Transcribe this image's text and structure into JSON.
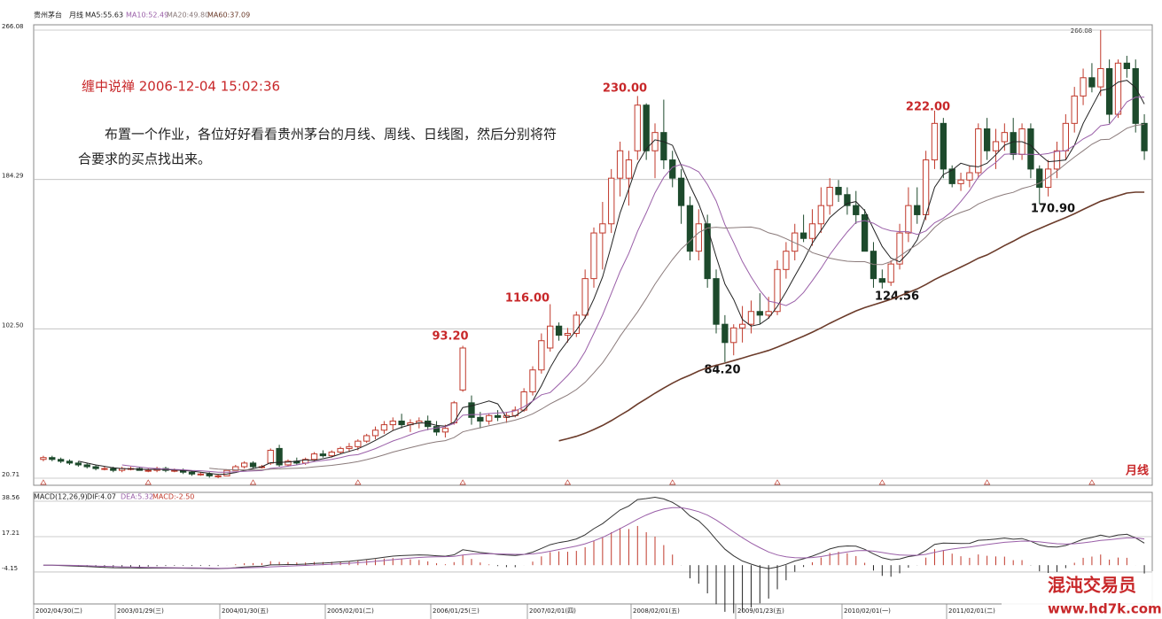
{
  "chart_data": {
    "type": "candlestick",
    "title": "贵州茅台",
    "period": "月线",
    "ma_legend": [
      "MA5:55.63",
      "MA10:52.49",
      "MA20:49.80",
      "MA60:37.09"
    ],
    "ma_colors": [
      "#222222",
      "#9a5fa8",
      "#8a7a7a",
      "#6b3b2a"
    ],
    "ma_periods": [
      5,
      10,
      20,
      60
    ],
    "up_color": "#c0392b",
    "down_color": "#1d4a2c",
    "ylim": [
      20.71,
      266.08
    ],
    "yticks": [
      20.71,
      {
        "value": 102.5,
        "label": "102.50"
      },
      184.29,
      266.08
    ],
    "annotations": [
      "93.20",
      "116.00",
      "230.00",
      "84.20",
      "222.00",
      "124.56",
      "170.90",
      "266.08"
    ],
    "note_title": "缠中说禅 2006-12-04 15:02:36",
    "note_body_1": "布置一个作业，各位好好看看贵州茅台的月线、周线、日线图，然后分别将符",
    "note_body_2": "合要求的买点找出来。",
    "corner_label": "月线",
    "x_labels": [
      "2002/04/30(二)",
      "2003/01/29(三)",
      "2004/01/30(五)",
      "2005/02/01(二)",
      "2006/01/25(三)",
      "2007/02/01(四)",
      "2008/02/01(五)",
      "2009/01/23(五)",
      "2010/02/01(一)",
      "2011/02/01(二)"
    ],
    "macd": {
      "legend": "MACD(12,26,9)",
      "dif_label": "DIF:4.07",
      "dea_label": "DEA:5.32",
      "macd_label": "MACD:-2.50",
      "ylim": [
        -23.4,
        43.9
      ],
      "yticks": [
        38.56,
        17.21,
        -4.15
      ]
    },
    "watermark_1": "混沌交易员",
    "watermark_2": "www.hd7k.com",
    "candles": [
      [
        31,
        33,
        30,
        32
      ],
      [
        32,
        33,
        30,
        31
      ],
      [
        31,
        32,
        29,
        30
      ],
      [
        30,
        31,
        28,
        29
      ],
      [
        29,
        30,
        27,
        28
      ],
      [
        28,
        29,
        26,
        27
      ],
      [
        27,
        28,
        25,
        26
      ],
      [
        26,
        27,
        25,
        26
      ],
      [
        26,
        27,
        24,
        25
      ],
      [
        25,
        27,
        24,
        26
      ],
      [
        26,
        27,
        25,
        26
      ],
      [
        26,
        27,
        25,
        25
      ],
      [
        25,
        26,
        24,
        25
      ],
      [
        25,
        27,
        24,
        26
      ],
      [
        26,
        27,
        24,
        25
      ],
      [
        25,
        26,
        24,
        25
      ],
      [
        25,
        26,
        23,
        24
      ],
      [
        24,
        25,
        22,
        23
      ],
      [
        23,
        24,
        22,
        23
      ],
      [
        23,
        24,
        21,
        22
      ],
      [
        22,
        23,
        20.71,
        22
      ],
      [
        22,
        25,
        22,
        25
      ],
      [
        25,
        28,
        25,
        27
      ],
      [
        27,
        30,
        26,
        29
      ],
      [
        29,
        30,
        26,
        27
      ],
      [
        27,
        28,
        26,
        27
      ],
      [
        29,
        37,
        28,
        36
      ],
      [
        37,
        39,
        27,
        28
      ],
      [
        28,
        31,
        27,
        30
      ],
      [
        30,
        32,
        28,
        29
      ],
      [
        29,
        32,
        28,
        31
      ],
      [
        31,
        35,
        30,
        34
      ],
      [
        34,
        36,
        32,
        33
      ],
      [
        33,
        36,
        32,
        35
      ],
      [
        35,
        38,
        34,
        37
      ],
      [
        37,
        40,
        35,
        38
      ],
      [
        38,
        42,
        36,
        41
      ],
      [
        41,
        45,
        40,
        44
      ],
      [
        44,
        49,
        42,
        47
      ],
      [
        47,
        52,
        45,
        50
      ],
      [
        50,
        54,
        47,
        52
      ],
      [
        52,
        56,
        48,
        50
      ],
      [
        50,
        53,
        46,
        51
      ],
      [
        51,
        54,
        48,
        52
      ],
      [
        52,
        55,
        47,
        49
      ],
      [
        49,
        52,
        44,
        46
      ],
      [
        46,
        50,
        43,
        48
      ],
      [
        51,
        63,
        50,
        62
      ],
      [
        69,
        93.2,
        68,
        92
      ],
      [
        62,
        66,
        50,
        54
      ],
      [
        54,
        57,
        48,
        52
      ],
      [
        52,
        56,
        50,
        55
      ],
      [
        55,
        58,
        52,
        54
      ],
      [
        54,
        57,
        51,
        55
      ],
      [
        55,
        60,
        54,
        58
      ],
      [
        58,
        70,
        57,
        68
      ],
      [
        68,
        82,
        66,
        80
      ],
      [
        80,
        100,
        78,
        96
      ],
      [
        92,
        116,
        90,
        104
      ],
      [
        104,
        106,
        96,
        99
      ],
      [
        99,
        103,
        95,
        100
      ],
      [
        100,
        112,
        98,
        110
      ],
      [
        110,
        135,
        108,
        130
      ],
      [
        130,
        158,
        125,
        155
      ],
      [
        155,
        172,
        135,
        160
      ],
      [
        160,
        190,
        155,
        185
      ],
      [
        185,
        205,
        175,
        200
      ],
      [
        185,
        200,
        170,
        195
      ],
      [
        200,
        230,
        195,
        225
      ],
      [
        225,
        226,
        195,
        200
      ],
      [
        200,
        215,
        185,
        210
      ],
      [
        210,
        228,
        190,
        195
      ],
      [
        195,
        200,
        180,
        185
      ],
      [
        185,
        190,
        160,
        170
      ],
      [
        170,
        175,
        140,
        145
      ],
      [
        145,
        168,
        140,
        160
      ],
      [
        160,
        165,
        125,
        130
      ],
      [
        130,
        135,
        100,
        105
      ],
      [
        105,
        110,
        84.2,
        95
      ],
      [
        95,
        105,
        88,
        103
      ],
      [
        103,
        115,
        95,
        105
      ],
      [
        105,
        118,
        100,
        112
      ],
      [
        112,
        122,
        105,
        110
      ],
      [
        110,
        120,
        108,
        112
      ],
      [
        112,
        140,
        110,
        135
      ],
      [
        135,
        150,
        130,
        145
      ],
      [
        145,
        160,
        140,
        155
      ],
      [
        155,
        165,
        150,
        152
      ],
      [
        152,
        168,
        148,
        160
      ],
      [
        160,
        180,
        155,
        170
      ],
      [
        170,
        185,
        165,
        180
      ],
      [
        180,
        184,
        172,
        176
      ],
      [
        176,
        180,
        165,
        170
      ],
      [
        170,
        178,
        160,
        165
      ],
      [
        165,
        168,
        145,
        145
      ],
      [
        145,
        150,
        125,
        130
      ],
      [
        130,
        135,
        124.56,
        128
      ],
      [
        128,
        140,
        126,
        138
      ],
      [
        138,
        160,
        135,
        155
      ],
      [
        155,
        180,
        150,
        170
      ],
      [
        170,
        180,
        160,
        165
      ],
      [
        165,
        200,
        162,
        195
      ],
      [
        195,
        222,
        190,
        215
      ],
      [
        215,
        218,
        185,
        190
      ],
      [
        190,
        192,
        180,
        182
      ],
      [
        182,
        188,
        178,
        184
      ],
      [
        184,
        192,
        180,
        188
      ],
      [
        188,
        215,
        185,
        212
      ],
      [
        212,
        218,
        195,
        200
      ],
      [
        200,
        212,
        190,
        205
      ],
      [
        205,
        215,
        200,
        210
      ],
      [
        210,
        218,
        195,
        198
      ],
      [
        198,
        215,
        195,
        212
      ],
      [
        212,
        215,
        185,
        190
      ],
      [
        190,
        192,
        170.9,
        180
      ],
      [
        180,
        195,
        175,
        190
      ],
      [
        190,
        205,
        185,
        200
      ],
      [
        200,
        220,
        195,
        215
      ],
      [
        215,
        235,
        210,
        230
      ],
      [
        230,
        245,
        225,
        240
      ],
      [
        240,
        248,
        232,
        235
      ],
      [
        235,
        266.08,
        230,
        245
      ],
      [
        245,
        250,
        215,
        220
      ],
      [
        220,
        250,
        218,
        248
      ],
      [
        248,
        252,
        240,
        245
      ],
      [
        245,
        250,
        210,
        215
      ],
      [
        215,
        220,
        195,
        200
      ]
    ]
  }
}
